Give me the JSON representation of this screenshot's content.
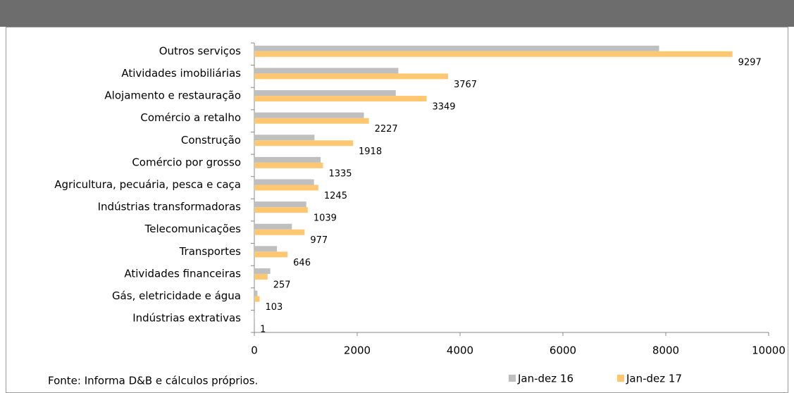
{
  "chart_data": {
    "type": "hbar",
    "categories": [
      "Outros serviços",
      "Atividades imobiliárias",
      "Alojamento e restauração",
      "Comércio a retalho",
      "Construção",
      "Comércio por grosso",
      "Agricultura, pecuária, pesca e caça",
      "Indústrias transformadoras",
      "Telecomunicações",
      "Transportes",
      "Atividades financeiras",
      "Gás, eletricidade e água",
      "Indústrias extrativas"
    ],
    "series": [
      {
        "name": "Jan-dez 16",
        "color": "#bfbfbf",
        "values": [
          7870,
          2800,
          2750,
          2130,
          1170,
          1290,
          1160,
          1010,
          730,
          440,
          310,
          60,
          5
        ]
      },
      {
        "name": "Jan-dez 17",
        "color": "#ffc870",
        "values": [
          9297,
          3767,
          3349,
          2227,
          1918,
          1335,
          1245,
          1039,
          977,
          646,
          257,
          103,
          1
        ],
        "labels": true
      }
    ],
    "xlim": [
      0,
      10000
    ],
    "xticks": [
      0,
      2000,
      4000,
      6000,
      8000,
      10000
    ],
    "legend": "bottom-right",
    "source": "Fonte:  Informa D&B e cálculos próprios."
  }
}
